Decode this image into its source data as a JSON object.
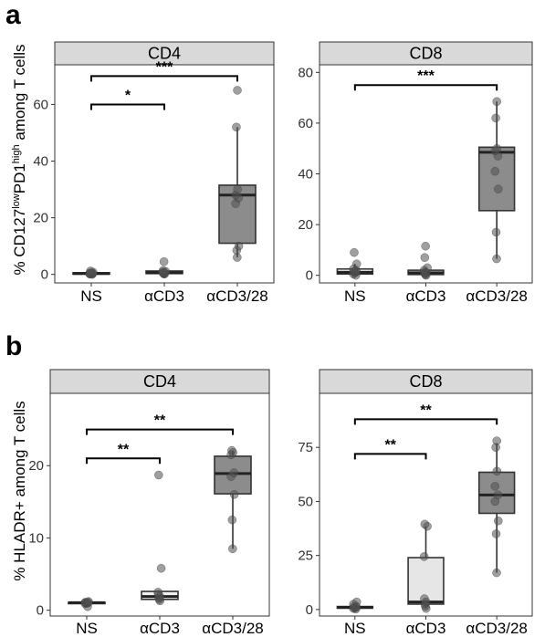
{
  "panels": [
    {
      "letter": "a",
      "ylabel_parts": [
        "% CD127",
        "low",
        "PD1",
        "high",
        " among T cells"
      ]
    },
    {
      "letter": "b",
      "ylabel_parts": [
        "% HLADR+ among T cells"
      ]
    }
  ],
  "chart_data": [
    {
      "type": "box",
      "panel": "a",
      "title": "CD4",
      "categories": [
        "NS",
        "αCD3",
        "αCD3/28"
      ],
      "ylim": [
        -3,
        74
      ],
      "yticks": [
        0,
        20,
        40,
        60
      ],
      "boxes": [
        {
          "category": "NS",
          "min": 0,
          "q1": 0.1,
          "median": 0.3,
          "q3": 0.6,
          "max": 1.2,
          "fill": "#f0f0f0",
          "points": [
            0,
            0.1,
            0.2,
            0.3,
            0.3,
            0.4,
            0.5,
            0.8,
            1.2
          ]
        },
        {
          "category": "αCD3",
          "min": 0.1,
          "q1": 0.3,
          "median": 0.6,
          "q3": 1.2,
          "max": 1.5,
          "fill": "#f0f0f0",
          "points": [
            0.1,
            0.2,
            0.4,
            0.5,
            0.6,
            0.8,
            1.0,
            1.4,
            4.5
          ]
        },
        {
          "category": "αCD3/28",
          "min": 6,
          "q1": 11,
          "median": 28,
          "q3": 31.5,
          "max": 52,
          "fill": "#8c8c8c",
          "points": [
            6,
            8.5,
            10,
            25,
            27,
            28,
            30,
            52,
            65
          ]
        }
      ],
      "annotations": [
        {
          "from": "NS",
          "to": "αCD3",
          "label": "*",
          "y": 60
        },
        {
          "from": "NS",
          "to": "αCD3/28",
          "label": "***",
          "y": 70
        }
      ]
    },
    {
      "type": "box",
      "panel": "a",
      "title": "CD8",
      "categories": [
        "NS",
        "αCD3",
        "αCD3/28"
      ],
      "ylim": [
        -3,
        83
      ],
      "yticks": [
        0,
        20,
        40,
        60,
        80
      ],
      "boxes": [
        {
          "category": "NS",
          "min": 0,
          "q1": 0.5,
          "median": 1.2,
          "q3": 2.5,
          "max": 4.5,
          "fill": "#f0f0f0",
          "points": [
            0,
            0.5,
            1,
            1.2,
            1.5,
            2,
            2.5,
            4.5,
            9
          ]
        },
        {
          "category": "αCD3",
          "min": 0,
          "q1": 0.3,
          "median": 1,
          "q3": 2,
          "max": 3,
          "fill": "#f0f0f0",
          "points": [
            0,
            0.3,
            0.6,
            1,
            1.2,
            2,
            3,
            7,
            11.5
          ]
        },
        {
          "category": "αCD3/28",
          "min": 6.5,
          "q1": 25.5,
          "median": 48.5,
          "q3": 50.5,
          "max": 68.5,
          "fill": "#8c8c8c",
          "points": [
            6.5,
            17,
            34,
            41,
            47,
            49,
            50,
            62,
            68.5
          ]
        }
      ],
      "annotations": [
        {
          "from": "NS",
          "to": "αCD3/28",
          "label": "***",
          "y": 75
        }
      ]
    },
    {
      "type": "box",
      "panel": "b",
      "title": "CD4",
      "categories": [
        "NS",
        "αCD3",
        "αCD3/28"
      ],
      "ylim": [
        -0.8,
        30
      ],
      "yticks": [
        0,
        10,
        20
      ],
      "boxes": [
        {
          "category": "NS",
          "min": 0.9,
          "q1": 1.0,
          "median": 1.05,
          "q3": 1.1,
          "max": 1.2,
          "fill": "#f0f0f0",
          "points": [
            0.5,
            0.9,
            1.0,
            1.0,
            1.05,
            1.1,
            1.1,
            1.2
          ]
        },
        {
          "category": "αCD3",
          "min": 1.3,
          "q1": 1.5,
          "median": 1.9,
          "q3": 2.6,
          "max": 2.6,
          "fill": "#f0f0f0",
          "points": [
            1.3,
            1.5,
            1.7,
            1.9,
            2.2,
            2.5,
            5.8,
            18.7
          ]
        },
        {
          "category": "αCD3/28",
          "min": 8.5,
          "q1": 16.1,
          "median": 18.9,
          "q3": 21.3,
          "max": 22.1,
          "fill": "#8c8c8c",
          "points": [
            8.5,
            12.5,
            16,
            18.5,
            19,
            21.5,
            21.8,
            22.1
          ]
        }
      ],
      "annotations": [
        {
          "from": "NS",
          "to": "αCD3",
          "label": "**",
          "y": 21
        },
        {
          "from": "NS",
          "to": "αCD3/28",
          "label": "**",
          "y": 25
        }
      ]
    },
    {
      "type": "box",
      "panel": "b",
      "title": "CD8",
      "categories": [
        "NS",
        "αCD3",
        "αCD3/28"
      ],
      "ylim": [
        -3,
        100
      ],
      "yticks": [
        0,
        25,
        50,
        75
      ],
      "boxes": [
        {
          "category": "NS",
          "min": 0.2,
          "q1": 0.6,
          "median": 1.0,
          "q3": 1.4,
          "max": 2.5,
          "fill": "#f0f0f0",
          "points": [
            0.2,
            0.5,
            0.8,
            1.0,
            1.2,
            1.5,
            2.5,
            3.5
          ]
        },
        {
          "category": "αCD3",
          "min": 0.5,
          "q1": 2.5,
          "median": 3.5,
          "q3": 24,
          "max": 38.5,
          "fill": "#e6e6e6",
          "points": [
            0.5,
            1.5,
            2.5,
            3.5,
            5,
            24.5,
            38.5,
            39.5
          ]
        },
        {
          "category": "αCD3/28",
          "min": 17,
          "q1": 44.5,
          "median": 53,
          "q3": 63.5,
          "max": 77,
          "fill": "#8c8c8c",
          "points": [
            17,
            35,
            41,
            50,
            53,
            57,
            64,
            75,
            78
          ]
        }
      ],
      "annotations": [
        {
          "from": "NS",
          "to": "αCD3",
          "label": "**",
          "y": 72
        },
        {
          "from": "NS",
          "to": "αCD3/28",
          "label": "**",
          "y": 88
        }
      ]
    }
  ]
}
